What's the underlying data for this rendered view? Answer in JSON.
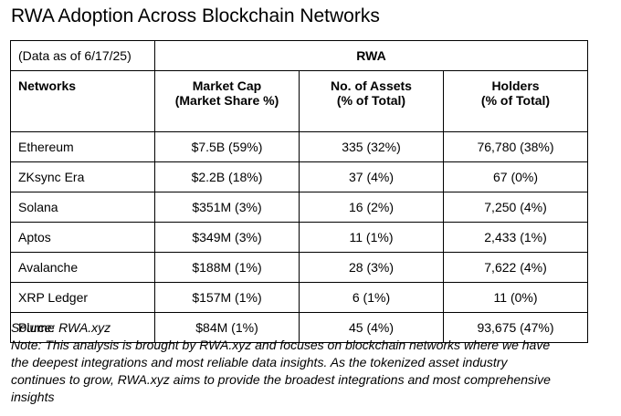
{
  "title": "RWA Adoption Across Blockchain Networks",
  "table": {
    "date_note": "(Data as of 6/17/25)",
    "group_header": "RWA",
    "headers": {
      "networks": "Networks",
      "market_cap_line1": "Market Cap",
      "market_cap_line2": "(Market Share %)",
      "assets_line1": "No. of Assets",
      "assets_line2": "(% of Total)",
      "holders_line1": "Holders",
      "holders_line2": "(% of Total)"
    },
    "rows": [
      {
        "network": "Ethereum",
        "market_cap": "$7.5B (59%)",
        "assets": "335 (32%)",
        "holders": "76,780 (38%)"
      },
      {
        "network": "ZKsync Era",
        "market_cap": "$2.2B (18%)",
        "assets": "37 (4%)",
        "holders": "67 (0%)"
      },
      {
        "network": "Solana",
        "market_cap": "$351M (3%)",
        "assets": "16 (2%)",
        "holders": "7,250 (4%)"
      },
      {
        "network": "Aptos",
        "market_cap": "$349M (3%)",
        "assets": "11 (1%)",
        "holders": "2,433 (1%)"
      },
      {
        "network": "Avalanche",
        "market_cap": "$188M (1%)",
        "assets": "28 (3%)",
        "holders": "7,622 (4%)"
      },
      {
        "network": "XRP Ledger",
        "market_cap": "$157M (1%)",
        "assets": "6 (1%)",
        "holders": "11 (0%)"
      },
      {
        "network": "Plume",
        "market_cap": "$84M (1%)",
        "assets": "45 (4%)",
        "holders": "93,675 (47%)"
      }
    ]
  },
  "source": "Source: RWA.xyz",
  "note_lines": [
    "Note: This analysis is brought by RWA.xyz and focuses on blockchain networks where we have",
    "the deepest integrations and most reliable data insights. As the tokenized asset industry",
    "continues to grow, RWA.xyz aims to provide the broadest integrations and most comprehensive",
    "insights"
  ]
}
